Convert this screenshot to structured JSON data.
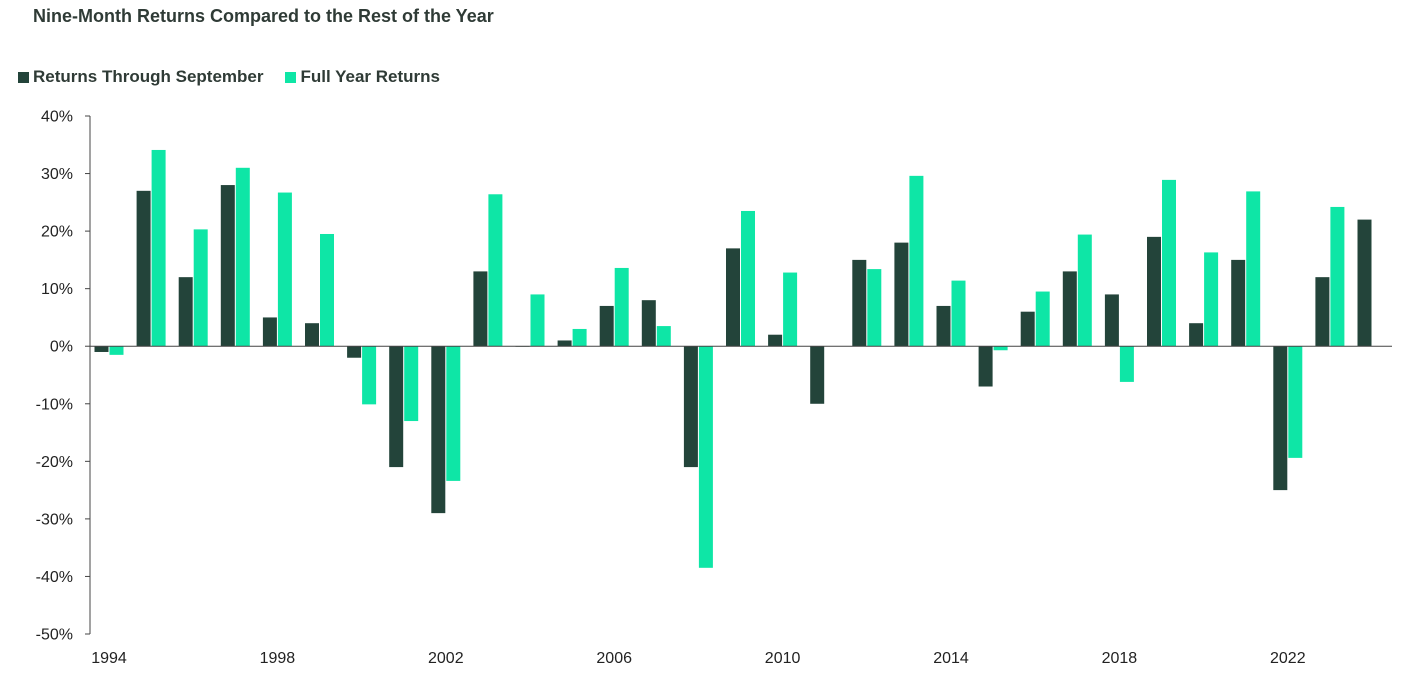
{
  "title": "Nine-Month Returns Compared to the Rest of the Year",
  "colors": {
    "series1": "#23443a",
    "series2": "#0ee6a6",
    "axis": "#444444",
    "text": "#222222"
  },
  "chart_data": {
    "type": "bar",
    "title": "Nine-Month Returns Compared to the Rest of the Year",
    "xlabel": "",
    "ylabel": "",
    "ylim": [
      -50,
      40
    ],
    "yticks": [
      40,
      30,
      20,
      10,
      0,
      -10,
      -20,
      -30,
      -40,
      -50
    ],
    "ytick_labels": [
      "40%",
      "30%",
      "20%",
      "10%",
      "0%",
      "-10%",
      "-20%",
      "-30%",
      "-40%",
      "-50%"
    ],
    "legend_position": "top-left",
    "grid": false,
    "categories": [
      1994,
      1995,
      1996,
      1997,
      1998,
      1999,
      2000,
      2001,
      2002,
      2003,
      2004,
      2005,
      2006,
      2007,
      2008,
      2009,
      2010,
      2011,
      2012,
      2013,
      2014,
      2015,
      2016,
      2017,
      2018,
      2019,
      2020,
      2021,
      2022,
      2023,
      2024
    ],
    "xtick_labels": [
      "1994",
      "1998",
      "2002",
      "2006",
      "2010",
      "2014",
      "2018",
      "2022"
    ],
    "series": [
      {
        "name": "Returns Through September",
        "values": [
          -1,
          27,
          12,
          28,
          5,
          4,
          -2,
          -21,
          -29,
          13,
          0,
          1,
          7,
          8,
          -21,
          17,
          2,
          -10,
          15,
          18,
          7,
          -7,
          6,
          13,
          9,
          19,
          4,
          15,
          -25,
          12,
          22
        ]
      },
      {
        "name": "Full Year Returns",
        "values": [
          -1.5,
          34.1,
          20.3,
          31.0,
          26.7,
          19.5,
          -10.1,
          -13.0,
          -23.4,
          26.4,
          9.0,
          3.0,
          13.6,
          3.5,
          -38.5,
          23.5,
          12.8,
          null,
          13.4,
          29.6,
          11.4,
          -0.7,
          9.5,
          19.4,
          -6.2,
          28.9,
          16.3,
          26.9,
          -19.4,
          24.2,
          null
        ]
      }
    ]
  }
}
